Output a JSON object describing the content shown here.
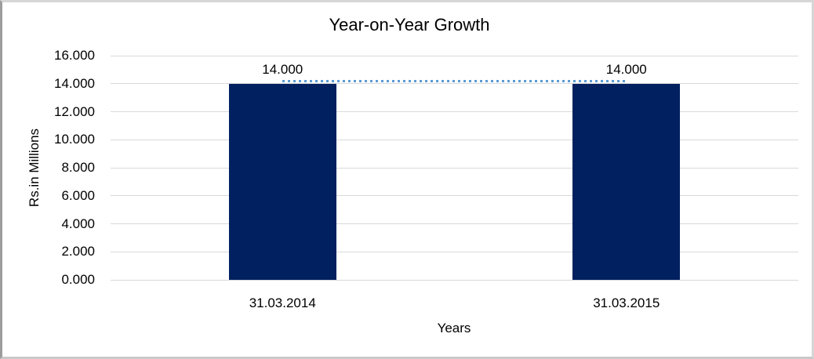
{
  "chart": {
    "title": "Year-on-Year Growth",
    "x_axis_title": "Years",
    "y_axis_title": "Rs.in Millions"
  },
  "chart_data": {
    "type": "bar",
    "title": "Year-on-Year Growth",
    "xlabel": "Years",
    "ylabel": "Rs.in Millions",
    "categories": [
      "31.03.2014",
      "31.03.2015"
    ],
    "values": [
      14,
      14
    ],
    "value_labels": [
      "14.000",
      "14.000"
    ],
    "ytick_values": [
      0,
      2,
      4,
      6,
      8,
      10,
      12,
      14,
      16
    ],
    "ytick_labels": [
      "0.000",
      "2.000",
      "4.000",
      "6.000",
      "8.000",
      "10.000",
      "12.000",
      "14.000",
      "16.000"
    ],
    "ylim": [
      0,
      16
    ],
    "grid": true,
    "legend": false,
    "overlay_line": {
      "style": "dotted",
      "values": [
        14,
        14
      ]
    },
    "colors": {
      "bar": "#002060",
      "trend_line": "#5b9bd5",
      "gridline": "#d9d9d9",
      "text": "#000000"
    }
  }
}
